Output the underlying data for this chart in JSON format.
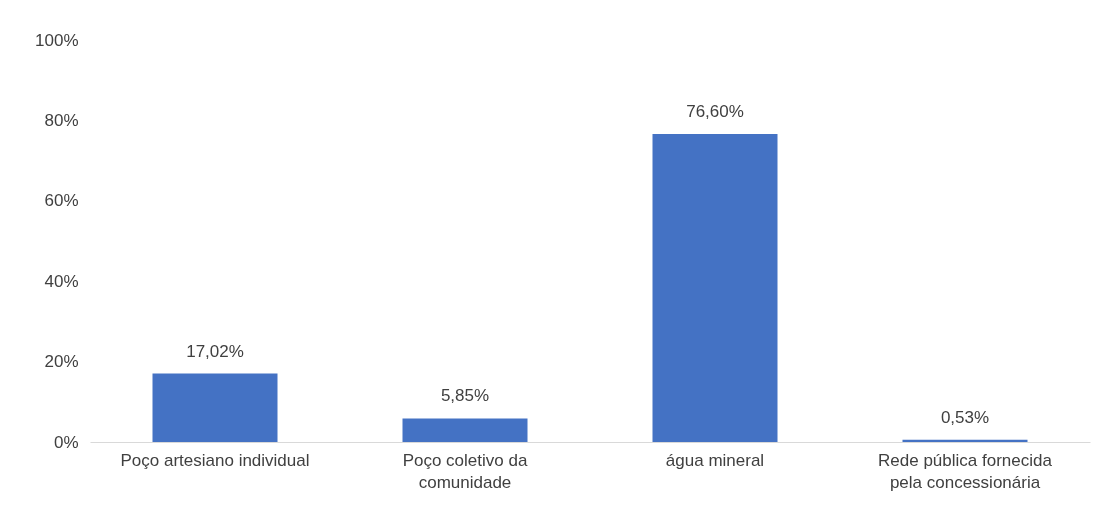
{
  "chart_data": {
    "type": "bar",
    "categories": [
      "Poço artesiano individual",
      "Poço coletivo da comunidade",
      "água mineral",
      "Rede pública fornecida pela concessionária"
    ],
    "values": [
      17.02,
      5.85,
      76.6,
      0.53
    ],
    "value_labels": [
      "17,02%",
      "5,85%",
      "76,60%",
      "0,53%"
    ],
    "color": "#4472c4",
    "ylim": [
      0,
      100
    ],
    "yticks": [
      {
        "value": 0,
        "label": "0%"
      },
      {
        "value": 20,
        "label": "20%"
      },
      {
        "value": 40,
        "label": "40%"
      },
      {
        "value": 60,
        "label": "60%"
      },
      {
        "value": 80,
        "label": "80%"
      },
      {
        "value": 100,
        "label": "100%"
      }
    ],
    "grid": false
  }
}
